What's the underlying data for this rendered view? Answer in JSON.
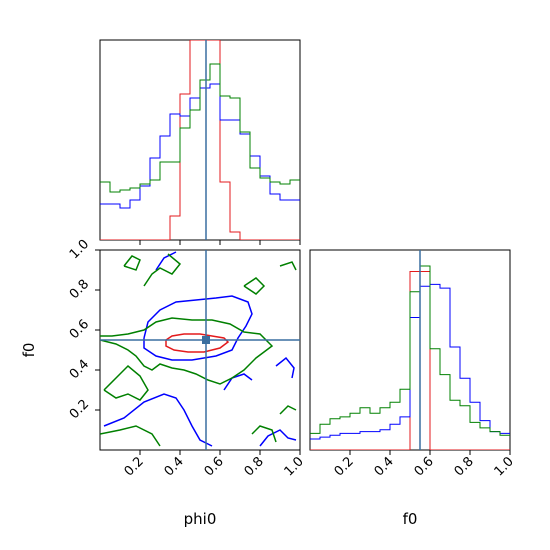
{
  "chart_data": {
    "type": "corner",
    "parameters": [
      "phi0",
      "f0"
    ],
    "colors": {
      "red": "#e31a1c",
      "blue": "#0000ff",
      "green": "#008000",
      "truth": "#3a6fa0"
    },
    "truth": {
      "phi0": 0.53,
      "f0": 0.55
    },
    "axes": {
      "phi0": {
        "range": [
          0,
          1
        ],
        "ticks": [
          "0.2",
          "0.4",
          "0.6",
          "0.8",
          "1.0"
        ],
        "label": "phi0"
      },
      "f0": {
        "range": [
          0,
          1
        ],
        "ticks": [
          "0.2",
          "0.4",
          "0.6",
          "0.8",
          "1.0"
        ],
        "label": "f0"
      }
    },
    "hist_phi0": {
      "bin_edges": [
        0.0,
        0.05,
        0.1,
        0.15,
        0.2,
        0.25,
        0.3,
        0.35,
        0.4,
        0.45,
        0.5,
        0.55,
        0.6,
        0.65,
        0.7,
        0.75,
        0.8,
        0.85,
        0.9,
        0.95,
        1.0
      ],
      "series": [
        {
          "color": "red",
          "values": [
            0,
            0,
            0,
            0,
            0,
            0,
            0,
            0.12,
            0.73,
            1.0,
            1.0,
            1.0,
            0.29,
            0.04,
            0,
            0,
            0,
            0,
            0,
            0
          ]
        },
        {
          "color": "blue",
          "values": [
            0.18,
            0.18,
            0.16,
            0.2,
            0.27,
            0.41,
            0.52,
            0.63,
            0.62,
            0.71,
            0.76,
            0.78,
            0.6,
            0.6,
            0.53,
            0.42,
            0.32,
            0.23,
            0.2,
            0.2
          ]
        },
        {
          "color": "green",
          "values": [
            0.29,
            0.24,
            0.25,
            0.26,
            0.28,
            0.3,
            0.39,
            0.39,
            0.56,
            0.65,
            0.8,
            0.88,
            0.72,
            0.71,
            0.54,
            0.36,
            0.31,
            0.29,
            0.28,
            0.3
          ]
        }
      ]
    },
    "hist_f0": {
      "bin_edges": [
        0.0,
        0.05,
        0.1,
        0.15,
        0.2,
        0.25,
        0.3,
        0.35,
        0.4,
        0.45,
        0.5,
        0.55,
        0.6,
        0.65,
        0.7,
        0.75,
        0.8,
        0.85,
        0.9,
        0.95,
        1.0
      ],
      "series": [
        {
          "color": "red",
          "values": [
            0,
            0,
            0,
            0,
            0,
            0,
            0,
            0,
            0,
            0,
            0.97,
            0.97,
            0,
            0,
            0,
            0,
            0,
            0,
            0,
            0
          ]
        },
        {
          "color": "blue",
          "values": [
            0.06,
            0.07,
            0.08,
            0.09,
            0.09,
            0.1,
            0.1,
            0.11,
            0.14,
            0.18,
            0.72,
            0.89,
            0.9,
            0.88,
            0.56,
            0.39,
            0.26,
            0.16,
            0.1,
            0.09
          ]
        },
        {
          "color": "green",
          "values": [
            0.09,
            0.14,
            0.17,
            0.18,
            0.2,
            0.23,
            0.2,
            0.23,
            0.26,
            0.33,
            0.86,
            1.0,
            0.55,
            0.41,
            0.27,
            0.24,
            0.15,
            0.12,
            0.1,
            0.08
          ]
        }
      ]
    },
    "contours": [
      {
        "color": "red",
        "points": [
          [
            0.33,
            0.55
          ],
          [
            0.36,
            0.57
          ],
          [
            0.42,
            0.58
          ],
          [
            0.5,
            0.58
          ],
          [
            0.56,
            0.57
          ],
          [
            0.62,
            0.56
          ],
          [
            0.64,
            0.54
          ],
          [
            0.6,
            0.51
          ],
          [
            0.52,
            0.49
          ],
          [
            0.44,
            0.49
          ],
          [
            0.37,
            0.5
          ],
          [
            0.33,
            0.52
          ],
          [
            0.33,
            0.55
          ]
        ]
      },
      {
        "color": "blue",
        "points": [
          [
            0.22,
            0.56
          ],
          [
            0.24,
            0.64
          ],
          [
            0.3,
            0.7
          ],
          [
            0.38,
            0.74
          ],
          [
            0.48,
            0.75
          ],
          [
            0.58,
            0.76
          ],
          [
            0.66,
            0.77
          ],
          [
            0.74,
            0.74
          ],
          [
            0.76,
            0.68
          ],
          [
            0.73,
            0.62
          ],
          [
            0.69,
            0.56
          ],
          [
            0.66,
            0.5
          ],
          [
            0.58,
            0.47
          ],
          [
            0.46,
            0.45
          ],
          [
            0.36,
            0.45
          ],
          [
            0.28,
            0.47
          ],
          [
            0.22,
            0.51
          ],
          [
            0.22,
            0.56
          ]
        ]
      },
      {
        "color": "blue",
        "points": [
          [
            0.02,
            0.12
          ],
          [
            0.12,
            0.16
          ],
          [
            0.22,
            0.24
          ],
          [
            0.32,
            0.28
          ],
          [
            0.38,
            0.26
          ],
          [
            0.42,
            0.2
          ],
          [
            0.46,
            0.12
          ],
          [
            0.5,
            0.05
          ],
          [
            0.56,
            0.02
          ]
        ]
      },
      {
        "color": "blue",
        "points": [
          [
            0.8,
            0.02
          ],
          [
            0.84,
            0.07
          ],
          [
            0.9,
            0.1
          ],
          [
            0.94,
            0.06
          ],
          [
            0.98,
            0.05
          ]
        ]
      },
      {
        "color": "blue",
        "points": [
          [
            0.62,
            0.3
          ],
          [
            0.66,
            0.36
          ],
          [
            0.72,
            0.38
          ],
          [
            0.76,
            0.35
          ]
        ]
      },
      {
        "color": "blue",
        "points": [
          [
            0.28,
            0.9
          ],
          [
            0.32,
            0.96
          ],
          [
            0.38,
            0.99
          ]
        ]
      },
      {
        "color": "blue",
        "points": [
          [
            0.88,
            0.42
          ],
          [
            0.93,
            0.46
          ],
          [
            0.97,
            0.41
          ],
          [
            0.96,
            0.36
          ]
        ]
      },
      {
        "color": "green",
        "points": [
          [
            0.0,
            0.55
          ],
          [
            0.08,
            0.53
          ],
          [
            0.14,
            0.5
          ],
          [
            0.18,
            0.47
          ],
          [
            0.22,
            0.42
          ],
          [
            0.26,
            0.4
          ],
          [
            0.3,
            0.43
          ],
          [
            0.36,
            0.41
          ],
          [
            0.42,
            0.4
          ],
          [
            0.48,
            0.38
          ],
          [
            0.54,
            0.35
          ],
          [
            0.6,
            0.33
          ],
          [
            0.66,
            0.36
          ],
          [
            0.72,
            0.4
          ],
          [
            0.78,
            0.46
          ],
          [
            0.82,
            0.49
          ],
          [
            0.86,
            0.52
          ],
          [
            0.8,
            0.58
          ],
          [
            0.72,
            0.59
          ],
          [
            0.65,
            0.63
          ],
          [
            0.56,
            0.65
          ],
          [
            0.46,
            0.65
          ],
          [
            0.36,
            0.66
          ],
          [
            0.28,
            0.64
          ],
          [
            0.22,
            0.6
          ],
          [
            0.14,
            0.58
          ],
          [
            0.06,
            0.57
          ],
          [
            0.0,
            0.57
          ]
        ]
      },
      {
        "color": "green",
        "points": [
          [
            0.02,
            0.3
          ],
          [
            0.08,
            0.36
          ],
          [
            0.14,
            0.42
          ],
          [
            0.2,
            0.37
          ],
          [
            0.24,
            0.3
          ],
          [
            0.2,
            0.25
          ],
          [
            0.14,
            0.28
          ],
          [
            0.08,
            0.26
          ],
          [
            0.02,
            0.3
          ]
        ]
      },
      {
        "color": "green",
        "points": [
          [
            0.0,
            0.08
          ],
          [
            0.1,
            0.1
          ],
          [
            0.18,
            0.12
          ],
          [
            0.26,
            0.08
          ],
          [
            0.3,
            0.02
          ]
        ]
      },
      {
        "color": "green",
        "points": [
          [
            0.22,
            0.82
          ],
          [
            0.26,
            0.88
          ],
          [
            0.3,
            0.91
          ],
          [
            0.36,
            0.88
          ],
          [
            0.4,
            0.93
          ],
          [
            0.34,
            0.98
          ]
        ]
      },
      {
        "color": "green",
        "points": [
          [
            0.12,
            0.92
          ],
          [
            0.16,
            0.97
          ],
          [
            0.2,
            0.95
          ],
          [
            0.18,
            0.9
          ],
          [
            0.12,
            0.92
          ]
        ]
      },
      {
        "color": "green",
        "points": [
          [
            0.72,
            0.82
          ],
          [
            0.78,
            0.86
          ],
          [
            0.82,
            0.82
          ],
          [
            0.78,
            0.78
          ],
          [
            0.72,
            0.82
          ]
        ]
      },
      {
        "color": "green",
        "points": [
          [
            0.76,
            0.08
          ],
          [
            0.8,
            0.12
          ],
          [
            0.86,
            0.1
          ],
          [
            0.88,
            0.04
          ]
        ]
      },
      {
        "color": "green",
        "points": [
          [
            0.9,
            0.92
          ],
          [
            0.96,
            0.94
          ],
          [
            0.98,
            0.9
          ]
        ]
      },
      {
        "color": "green",
        "points": [
          [
            0.9,
            0.18
          ],
          [
            0.94,
            0.22
          ],
          [
            0.98,
            0.2
          ]
        ]
      }
    ]
  }
}
